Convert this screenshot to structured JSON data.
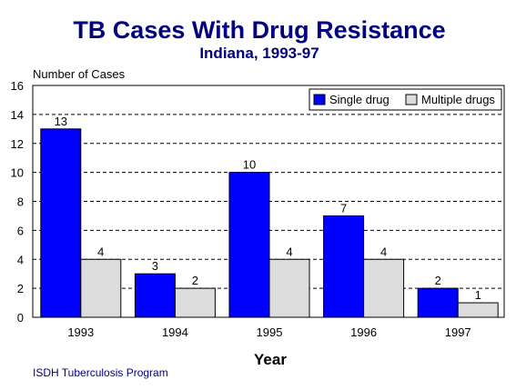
{
  "chart_data": {
    "type": "bar",
    "title": "TB Cases With Drug Resistance",
    "subtitle": "Indiana, 1993-97",
    "ylabel": "Number of Cases",
    "xlabel": "Year",
    "source": "ISDH Tuberculosis Program",
    "categories": [
      "1993",
      "1994",
      "1995",
      "1996",
      "1997"
    ],
    "series": [
      {
        "name": "Single drug",
        "values": [
          13,
          3,
          10,
          7,
          2
        ],
        "color": "#0000ff"
      },
      {
        "name": "Multiple drugs",
        "values": [
          4,
          2,
          4,
          4,
          1
        ],
        "color": "#dcdcdc"
      }
    ],
    "ylim": [
      0,
      16
    ],
    "yticks": [
      0,
      2,
      4,
      6,
      8,
      10,
      12,
      14,
      16
    ],
    "grid": true,
    "legend": "top-right",
    "data_labels": true
  }
}
